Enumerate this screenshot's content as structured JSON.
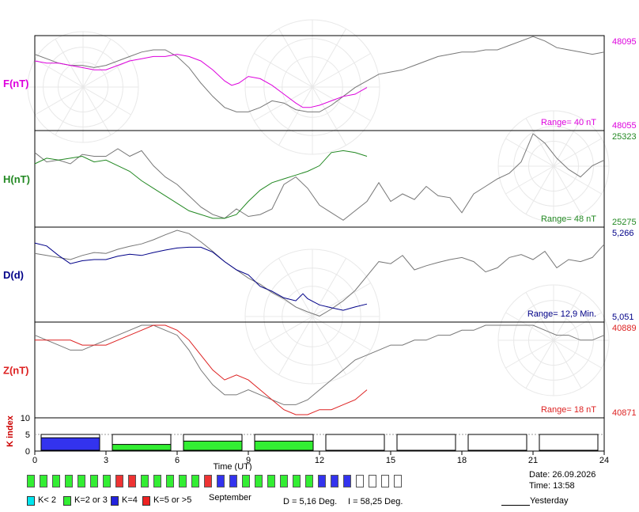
{
  "chart_data": {
    "type": "line",
    "x_axis": {
      "label": "Time (UT)",
      "range": [
        0,
        24
      ],
      "ticks": [
        "0",
        "3",
        "6",
        "9",
        "12",
        "15",
        "18",
        "21",
        "24"
      ]
    },
    "panels": [
      {
        "id": "F",
        "label": "F(nT)",
        "color": "#dd00dd",
        "max_label": "48095",
        "min_label": "48055",
        "range_label": "Range= 40 nT",
        "ylim": [
          48055,
          48095
        ],
        "series": [
          {
            "day": "today",
            "color": "#dd00dd",
            "x": [
              0,
              0.5,
              1,
              1.5,
              2,
              2.5,
              3,
              3.5,
              4,
              4.5,
              5,
              5.5,
              6,
              6.5,
              7,
              7.5,
              8,
              8.3,
              8.6,
              9,
              9.5,
              10,
              10.5,
              11,
              11.3,
              11.6,
              12,
              12.5,
              13,
              13.5,
              14
            ],
            "y": [
              48085,
              48084,
              48084,
              48083,
              48082,
              48081,
              48081,
              48083,
              48085,
              48086,
              48087,
              48087,
              48088,
              48087,
              48085,
              48081,
              48076,
              48074,
              48075,
              48078,
              48077,
              48074,
              48070,
              48066,
              48064,
              48064,
              48065,
              48067,
              48069,
              48070,
              48073
            ]
          },
          {
            "day": "yesterday",
            "color": "#777777",
            "x": [
              0,
              0.5,
              1,
              1.5,
              2,
              2.5,
              3,
              3.5,
              4,
              4.5,
              5,
              5.5,
              6,
              6.5,
              7,
              7.5,
              8,
              8.5,
              9,
              9.5,
              10,
              10.5,
              11,
              11.5,
              12,
              12.5,
              13,
              13.5,
              14,
              14.5,
              15,
              15.5,
              16,
              16.5,
              17,
              17.5,
              18,
              18.5,
              19,
              19.5,
              20,
              20.5,
              21,
              21.5,
              22,
              22.5,
              23,
              23.5,
              24
            ],
            "y": [
              48088,
              48086,
              48084,
              48083,
              48083,
              48082,
              48083,
              48085,
              48087,
              48089,
              48090,
              48090,
              48087,
              48082,
              48075,
              48069,
              48064,
              48062,
              48062,
              48064,
              48067,
              48066,
              48063,
              48062,
              48062,
              48065,
              48069,
              48073,
              48076,
              48079,
              48080,
              48081,
              48083,
              48085,
              48087,
              48088,
              48089,
              48089,
              48090,
              48090,
              48092,
              48094,
              48096,
              48094,
              48091,
              48090,
              48089,
              48088,
              48089
            ]
          }
        ]
      },
      {
        "id": "H",
        "label": "H(nT)",
        "color": "#228822",
        "max_label": "25323",
        "min_label": "25275",
        "range_label": "Range= 48 nT",
        "ylim": [
          25275,
          25323
        ],
        "series": [
          {
            "day": "today",
            "color": "#228822",
            "x": [
              0,
              0.5,
              1,
              1.5,
              2,
              2.5,
              3,
              3.5,
              4,
              4.5,
              5,
              5.5,
              6,
              6.5,
              7,
              7.5,
              8,
              8.5,
              9,
              9.5,
              10,
              10.5,
              11,
              11.5,
              12,
              12.5,
              13,
              13.5,
              14
            ],
            "y": [
              25307,
              25310,
              25309,
              25310,
              25311,
              25308,
              25309,
              25306,
              25303,
              25298,
              25294,
              25290,
              25286,
              25282,
              25280,
              25278,
              25278,
              25280,
              25287,
              25293,
              25297,
              25299,
              25301,
              25303,
              25306,
              25313,
              25314,
              25313,
              25311
            ]
          },
          {
            "day": "yesterday",
            "color": "#777777",
            "x": [
              0,
              0.5,
              1,
              1.5,
              2,
              2.5,
              3,
              3.5,
              4,
              4.5,
              5,
              5.5,
              6,
              6.5,
              7,
              7.5,
              8,
              8.5,
              9,
              9.5,
              10,
              10.5,
              11,
              11.5,
              12,
              12.5,
              13,
              13.5,
              14,
              14.5,
              15,
              15.5,
              16,
              16.5,
              17,
              17.5,
              18,
              18.5,
              19,
              19.5,
              20,
              20.5,
              21,
              21.5,
              22,
              22.5,
              23,
              23.5,
              24
            ],
            "y": [
              25313,
              25308,
              25309,
              25307,
              25312,
              25311,
              25311,
              25315,
              25311,
              25314,
              25306,
              25300,
              25296,
              25290,
              25284,
              25280,
              25278,
              25283,
              25279,
              25280,
              25283,
              25296,
              25300,
              25294,
              25285,
              25281,
              25277,
              25282,
              25287,
              25297,
              25287,
              25291,
              25288,
              25295,
              25290,
              25289,
              25281,
              25291,
              25295,
              25299,
              25302,
              25308,
              25323,
              25318,
              25310,
              25304,
              25300,
              25306,
              25309
            ]
          }
        ]
      },
      {
        "id": "D",
        "label": "D(d)",
        "color": "#000088",
        "max_label": "5,266",
        "min_label": "5,051",
        "range_label": "Range= 12,9 Min.",
        "ylim": [
          5.051,
          5.266
        ],
        "series": [
          {
            "day": "today",
            "color": "#000088",
            "x": [
              0,
              0.5,
              1,
              1.5,
              2,
              2.5,
              3,
              3.5,
              4,
              4.5,
              5,
              5.5,
              6,
              6.5,
              7,
              7.5,
              8,
              8.5,
              9,
              9.5,
              10,
              10.5,
              11,
              11.3,
              11.5,
              12,
              12.5,
              13,
              13.5,
              14
            ],
            "y": [
              5.235,
              5.228,
              5.205,
              5.185,
              5.192,
              5.195,
              5.195,
              5.203,
              5.208,
              5.205,
              5.212,
              5.218,
              5.223,
              5.225,
              5.225,
              5.213,
              5.19,
              5.17,
              5.158,
              5.13,
              5.118,
              5.102,
              5.095,
              5.112,
              5.1,
              5.085,
              5.078,
              5.072,
              5.08,
              5.087
            ]
          },
          {
            "day": "yesterday",
            "color": "#777777",
            "x": [
              0,
              0.5,
              1,
              1.5,
              2,
              2.5,
              3,
              3.5,
              4,
              4.5,
              5,
              5.5,
              6,
              6.5,
              7,
              7.5,
              8,
              8.5,
              9,
              9.5,
              10,
              10.5,
              11,
              11.5,
              12,
              12.5,
              13,
              13.5,
              14,
              14.5,
              15,
              15.5,
              16,
              16.5,
              17,
              17.5,
              18,
              18.5,
              19,
              19.5,
              20,
              20.5,
              21,
              21.5,
              22,
              22.5,
              23,
              23.5,
              24
            ],
            "y": [
              5.21,
              5.205,
              5.2,
              5.195,
              5.205,
              5.212,
              5.21,
              5.22,
              5.227,
              5.233,
              5.243,
              5.255,
              5.266,
              5.258,
              5.238,
              5.215,
              5.19,
              5.17,
              5.15,
              5.135,
              5.115,
              5.1,
              5.08,
              5.068,
              5.058,
              5.075,
              5.095,
              5.12,
              5.155,
              5.19,
              5.185,
              5.205,
              5.17,
              5.18,
              5.188,
              5.195,
              5.2,
              5.19,
              5.165,
              5.175,
              5.2,
              5.207,
              5.195,
              5.215,
              5.175,
              5.195,
              5.19,
              5.2,
              5.232
            ]
          }
        ]
      },
      {
        "id": "Z",
        "label": "Z(nT)",
        "color": "#dd2222",
        "max_label": "40889",
        "min_label": "40871",
        "range_label": "Range= 18 nT",
        "ylim": [
          40871,
          40889
        ],
        "series": [
          {
            "day": "today",
            "color": "#dd2222",
            "x": [
              0,
              0.5,
              1,
              1.5,
              2,
              2.5,
              3,
              3.5,
              4,
              4.5,
              5,
              5.5,
              6,
              6.5,
              7,
              7.5,
              8,
              8.5,
              9,
              9.5,
              10,
              10.5,
              11,
              11.5,
              12,
              12.5,
              13,
              13.5,
              14
            ],
            "y": [
              40886,
              40886,
              40886,
              40886,
              40885,
              40885,
              40885,
              40886,
              40887,
              40888,
              40889,
              40889,
              40888,
              40886,
              40883,
              40880,
              40878,
              40879,
              40878,
              40876,
              40874,
              40872,
              40871,
              40871,
              40872,
              40872,
              40873,
              40874,
              40876
            ]
          },
          {
            "day": "yesterday",
            "color": "#777777",
            "x": [
              0,
              0.5,
              1,
              1.5,
              2,
              2.5,
              3,
              3.5,
              4,
              4.5,
              5,
              5.5,
              6,
              6.5,
              7,
              7.5,
              8,
              8.5,
              9,
              9.5,
              10,
              10.5,
              11,
              11.5,
              12,
              12.5,
              13,
              13.5,
              14,
              14.5,
              15,
              15.5,
              16,
              16.5,
              17,
              17.5,
              18,
              18.5,
              19,
              19.5,
              20,
              20.5,
              21,
              21.5,
              22,
              22.5,
              23,
              23.5,
              24
            ],
            "y": [
              40887,
              40886,
              40885,
              40884,
              40884,
              40885,
              40886,
              40887,
              40888,
              40889,
              40889,
              40888,
              40887,
              40884,
              40880,
              40877,
              40875,
              40875,
              40876,
              40875,
              40874,
              40873,
              40873,
              40874,
              40876,
              40878,
              40880,
              40882,
              40883,
              40884,
              40885,
              40885,
              40886,
              40886,
              40887,
              40887,
              40888,
              40888,
              40889,
              40889,
              40889,
              40889,
              40889,
              40888,
              40887,
              40887,
              40886,
              40886,
              40887
            ]
          }
        ]
      }
    ],
    "k_index": {
      "label": "K index",
      "ylim": [
        0,
        10
      ],
      "axis_label": "10",
      "tick_labels": [
        "0",
        "5"
      ],
      "bars": [
        {
          "start": 0,
          "end": 3,
          "value": 4,
          "color": "#3333ee"
        },
        {
          "start": 3,
          "end": 6,
          "value": 2,
          "color": "#33ee33"
        },
        {
          "start": 6,
          "end": 9,
          "value": 3,
          "color": "#33ee33"
        },
        {
          "start": 9,
          "end": 12,
          "value": 3,
          "color": "#33ee33"
        },
        {
          "start": 12,
          "end": 15,
          "value": null,
          "color": "#ffffff"
        },
        {
          "start": 15,
          "end": 18,
          "value": null,
          "color": "#ffffff"
        },
        {
          "start": 18,
          "end": 21,
          "value": null,
          "color": "#ffffff"
        },
        {
          "start": 21,
          "end": 24,
          "value": null,
          "color": "#ffffff"
        }
      ]
    }
  },
  "month_strip": {
    "label": "September",
    "days": [
      "#33ee33",
      "#33ee33",
      "#33ee33",
      "#33ee33",
      "#33ee33",
      "#33ee33",
      "#33ee33",
      "#ee3333",
      "#ee3333",
      "#33ee33",
      "#33ee33",
      "#33ee33",
      "#33ee33",
      "#33ee33",
      "#ee3333",
      "#3333ee",
      "#3333ee",
      "#33ee33",
      "#33ee33",
      "#33ee33",
      "#33ee33",
      "#33ee33",
      "#33ee33",
      "#3333ee",
      "#3333ee",
      "#3333ee",
      "#ffffff",
      "#ffffff",
      "#ffffff",
      "#ffffff"
    ]
  },
  "key_legend": [
    {
      "label": "K< 2",
      "color": "#00e5ee"
    },
    {
      "label": "K=2 or 3",
      "color": "#33ee33"
    },
    {
      "label": "K=4",
      "color": "#2222dd"
    },
    {
      "label": "K=5 or >5",
      "color": "#ee2222"
    }
  ],
  "info": {
    "declination": "D = 5,16 Deg.",
    "inclination": "I = 58,25 Deg.",
    "date": "Date: 26.09.2026",
    "time": "Time: 13:58",
    "yesterday_label": "Yesterday"
  }
}
